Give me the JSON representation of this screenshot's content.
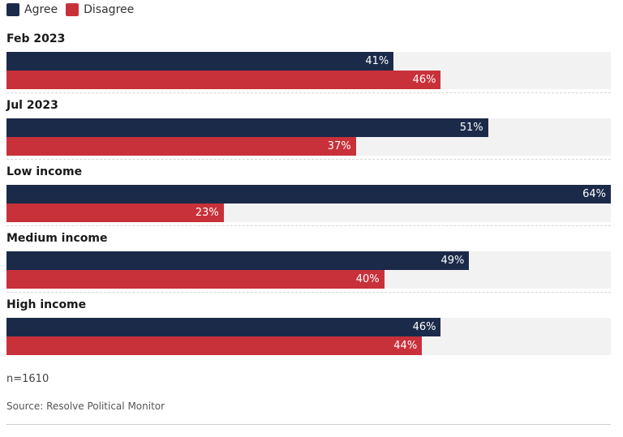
{
  "colors": {
    "agree": "#1c2a4a",
    "disagree": "#c8313a",
    "track": "#f2f2f2"
  },
  "chart_data": {
    "type": "bar",
    "orientation": "horizontal",
    "categories": [
      "Feb 2023",
      "Jul 2023",
      "Low income",
      "Medium income",
      "High income"
    ],
    "series": [
      {
        "name": "Agree",
        "values": [
          41,
          51,
          64,
          49,
          46
        ]
      },
      {
        "name": "Disagree",
        "values": [
          46,
          37,
          23,
          40,
          44
        ]
      }
    ],
    "value_suffix": "%",
    "xlim": [
      0,
      64
    ],
    "legend_position": "top-left",
    "grid": false
  },
  "note": "n=1610",
  "source": "Source: Resolve Political Monitor"
}
